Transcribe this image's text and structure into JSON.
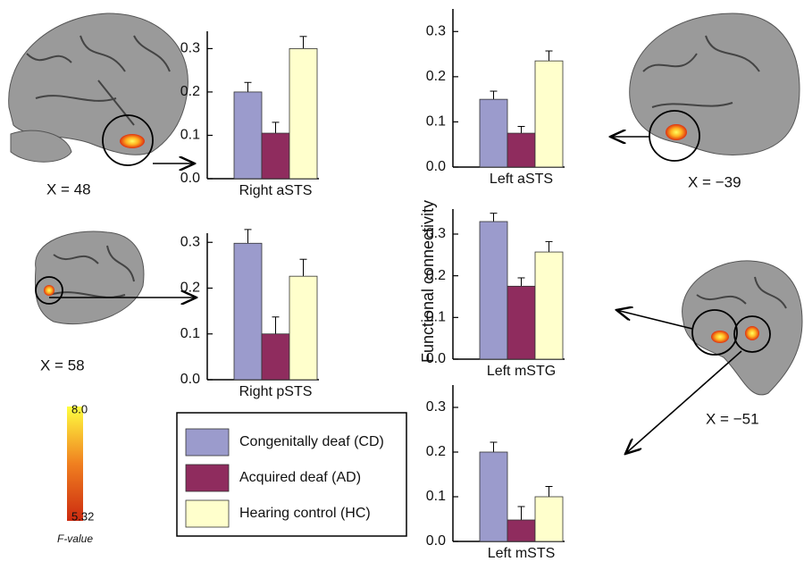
{
  "chart_data": [
    {
      "type": "bar",
      "xlabel": "Right aSTS",
      "values": [
        0.2,
        0.105,
        0.3
      ],
      "errors": [
        0.022,
        0.025,
        0.028
      ],
      "ylim": [
        0,
        0.34
      ],
      "yticks": [
        {
          "value": 0,
          "label": "0.0"
        },
        0.1,
        0.2,
        0.3
      ]
    },
    {
      "type": "bar",
      "xlabel": "Right pSTS",
      "values": [
        0.298,
        0.1,
        0.226
      ],
      "errors": [
        0.03,
        0.037,
        0.037
      ],
      "ylim": [
        0,
        0.32
      ],
      "yticks": [
        {
          "value": 0,
          "label": "0.0"
        },
        0.1,
        0.2,
        0.3
      ]
    },
    {
      "type": "bar",
      "xlabel": "Left aSTS",
      "values": [
        0.15,
        0.075,
        0.235
      ],
      "errors": [
        0.018,
        0.015,
        0.022
      ],
      "ylim": [
        0,
        0.35
      ],
      "yticks": [
        {
          "value": 0,
          "label": "0.0"
        },
        0.1,
        0.2,
        0.3
      ]
    },
    {
      "type": "bar",
      "xlabel": "Left mSTG",
      "values": [
        0.33,
        0.175,
        0.257
      ],
      "errors": [
        0.02,
        0.02,
        0.025
      ],
      "ylim": [
        0,
        0.36
      ],
      "yticks": [
        {
          "value": 0,
          "label": "0.0"
        },
        0.1,
        0.2,
        0.3
      ]
    },
    {
      "type": "bar",
      "xlabel": "Left mSTS",
      "values": [
        0.2,
        0.048,
        0.1
      ],
      "errors": [
        0.022,
        0.03,
        0.023
      ],
      "ylim": [
        0,
        0.35
      ],
      "yticks": [
        {
          "value": 0,
          "label": "0.0"
        },
        0.1,
        0.2,
        0.3
      ]
    }
  ],
  "figure": {
    "ylabel": "Functional connectivity",
    "legend": [
      {
        "label": "Congenitally deaf (CD)",
        "color": "#9b9bcc"
      },
      {
        "label": "Acquired deaf (AD)",
        "color": "#8f2c5e"
      },
      {
        "label": "Hearing control (HC)",
        "color": "#ffffcc"
      }
    ],
    "slice_labels": [
      "X = 48",
      "X = 58",
      "X = −39",
      "X = −51"
    ],
    "colorbar": {
      "title": "F-value",
      "ticks": [
        5.32,
        {
          "value": 8,
          "label": "8.0"
        }
      ]
    }
  }
}
